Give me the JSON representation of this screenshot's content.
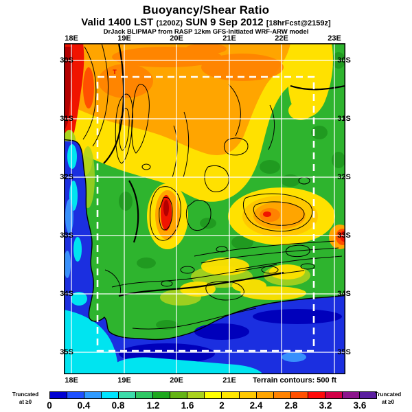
{
  "header": {
    "title": "Buoyancy/Shear Ratio",
    "valid_label": "Valid 1400 LST",
    "valid_zulu": "(1200Z)",
    "valid_date": "SUN 9 Sep 2012",
    "forecast_info": "[18hrFcst@2159z]",
    "model_line": "DrJack BLIPMAP from RASP 12km GFS-Initiated WRF-ARW model"
  },
  "map": {
    "top_axis": [
      "18E",
      "19E",
      "20E",
      "21E",
      "22E",
      "23E"
    ],
    "bottom_axis": [
      "18E",
      "19E",
      "20E",
      "21E"
    ],
    "left_axis": [
      "30S",
      "31S",
      "32S",
      "33S",
      "34S",
      "35S"
    ],
    "right_axis": [
      "30S",
      "31S",
      "32S",
      "33S",
      "34S",
      "35S"
    ],
    "terrain_note": "Terrain contours: 500 ft",
    "marker_t": "T"
  },
  "colorbar": {
    "ticks": [
      "0",
      "0.4",
      "0.8",
      "1.2",
      "1.6",
      "2",
      "2.4",
      "2.8",
      "3.2",
      "3.6"
    ],
    "segment_colors": [
      "#0000d2",
      "#1e50ff",
      "#2e9aff",
      "#00e6ff",
      "#3cdcaa",
      "#2ec864",
      "#1ea81e",
      "#64b414",
      "#aad21e",
      "#ffff00",
      "#ffe600",
      "#ffc800",
      "#ffa500",
      "#ff8200",
      "#ff5000",
      "#ff0a0a",
      "#d20046",
      "#8c148c",
      "#5a1ea0"
    ],
    "truncated_left": {
      "line1": "Truncated",
      "line2": "at ≥0"
    },
    "truncated_right": {
      "line1": "Truncated",
      "line2": "at ≥0"
    }
  },
  "chart_data": {
    "type": "heatmap",
    "title": "Buoyancy/Shear Ratio",
    "subtitle": "Valid 1400 LST (1200Z) SUN 9 Sep 2012 [18hrFcst@2159z]",
    "model": "DrJack BLIPMAP from RASP 12km GFS-Initiated WRF-ARW model",
    "x_axis": {
      "label": "longitude",
      "ticks": [
        "18E",
        "19E",
        "20E",
        "21E",
        "22E",
        "23E"
      ]
    },
    "y_axis": {
      "label": "latitude",
      "ticks": [
        "30S",
        "31S",
        "32S",
        "33S",
        "34S",
        "35S"
      ]
    },
    "colorbar": {
      "tick_values": [
        0,
        0.4,
        0.8,
        1.2,
        1.6,
        2,
        2.4,
        2.8,
        3.2,
        3.6
      ],
      "n_segments": 19,
      "value_per_segment": 0.2,
      "range": [
        0,
        3.8
      ],
      "colors": [
        "#0000d2",
        "#1e50ff",
        "#2e9aff",
        "#00e6ff",
        "#3cdcaa",
        "#2ec864",
        "#1ea81e",
        "#64b414",
        "#aad21e",
        "#ffff00",
        "#ffe600",
        "#ffc800",
        "#ffa500",
        "#ff8200",
        "#ff5000",
        "#ff0a0a",
        "#d20046",
        "#8c148c",
        "#5a1ea0"
      ],
      "truncation_label": "Truncated at ≥0"
    },
    "terrain_contour_interval_ft": 500,
    "approx_values_at_gridpoints": {
      "columns_lon": [
        "18E",
        "19E",
        "20E",
        "21E",
        "22E",
        "23E"
      ],
      "rows_lat": [
        "30S",
        "31S",
        "32S",
        "33S",
        "34S",
        "35S"
      ],
      "values": [
        [
          3.0,
          2.6,
          2.5,
          2.4,
          2.0,
          1.4
        ],
        [
          0.2,
          1.3,
          2.4,
          1.3,
          1.2,
          1.3
        ],
        [
          0.2,
          1.2,
          1.7,
          1.2,
          1.9,
          1.4
        ],
        [
          0.2,
          1.1,
          1.3,
          1.2,
          1.8,
          1.9
        ],
        [
          0.2,
          1.2,
          1.3,
          1.3,
          1.2,
          0.3
        ],
        [
          0.1,
          0.2,
          0.3,
          0.2,
          0.2,
          0.2
        ]
      ]
    }
  }
}
